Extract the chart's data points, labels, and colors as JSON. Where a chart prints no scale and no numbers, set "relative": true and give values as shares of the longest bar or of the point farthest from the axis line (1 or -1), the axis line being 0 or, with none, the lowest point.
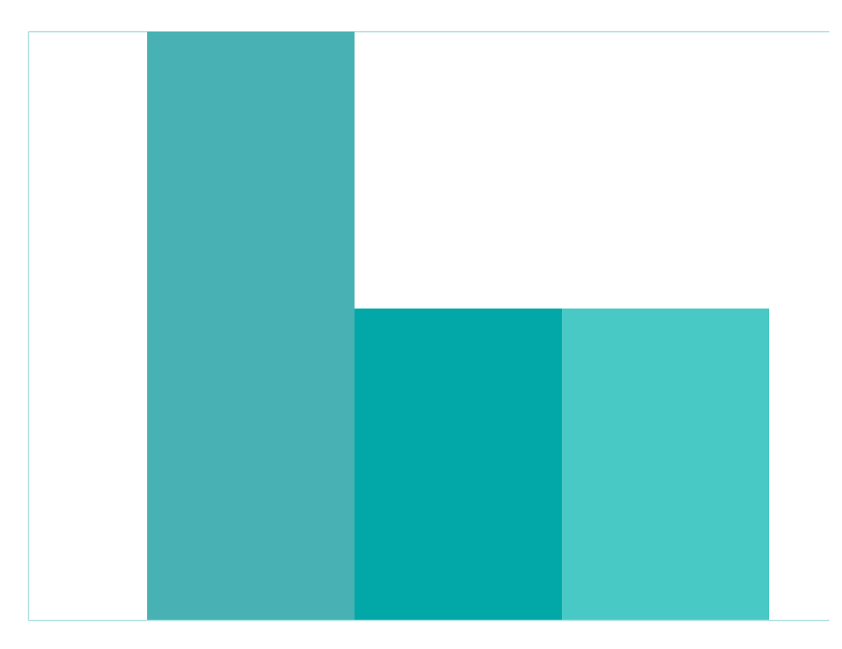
{
  "chart_data": {
    "type": "bar",
    "relative": true,
    "categories": [
      null,
      null,
      null
    ],
    "values": [
      1,
      0.53,
      0.53
    ],
    "colors": [
      "#47b1b4",
      "#02a8a8",
      "#48c9c5"
    ],
    "grid": "y",
    "tick_labels": false
  }
}
